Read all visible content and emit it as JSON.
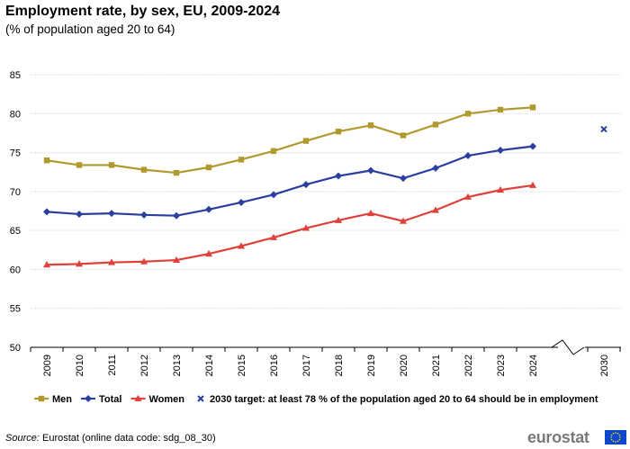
{
  "header": {
    "title": "Employment rate, by sex, EU, 2009-2024",
    "subtitle": "(% of population aged 20 to 64)"
  },
  "footer": {
    "source_label": "Source:",
    "source_text": "Eurostat (online data code: sdg_08_30)",
    "logo_text": "eurostat"
  },
  "colors": {
    "men": "#b09a2e",
    "total": "#2a3fa0",
    "women": "#e0403a",
    "target": "#2a3fa0",
    "grid": "#d0d0d0",
    "flag": "#0e47cb"
  },
  "chart_data": {
    "type": "line",
    "title": "Employment rate, by sex, EU, 2009-2024",
    "subtitle": "(% of population aged 20 to 64)",
    "xlabel": "",
    "ylabel": "",
    "ylim": [
      50,
      85
    ],
    "yticks": [
      50,
      55,
      60,
      65,
      70,
      75,
      80,
      85
    ],
    "grid": true,
    "legend": "bottom",
    "categories": [
      "2009",
      "2010",
      "2011",
      "2012",
      "2013",
      "2014",
      "2015",
      "2016",
      "2017",
      "2018",
      "2019",
      "2020",
      "2021",
      "2022",
      "2023",
      "2024"
    ],
    "series": [
      {
        "name": "Men",
        "marker": "square",
        "values": [
          74.0,
          73.4,
          73.4,
          72.8,
          72.4,
          73.1,
          74.1,
          75.2,
          76.5,
          77.7,
          78.5,
          77.2,
          78.6,
          80.0,
          80.5,
          80.8
        ]
      },
      {
        "name": "Total",
        "marker": "diamond",
        "values": [
          67.4,
          67.1,
          67.2,
          67.0,
          66.9,
          67.7,
          68.6,
          69.6,
          70.9,
          72.0,
          72.7,
          71.7,
          73.0,
          74.6,
          75.3,
          75.8
        ]
      },
      {
        "name": "Women",
        "marker": "triangle",
        "values": [
          60.6,
          60.7,
          60.9,
          61.0,
          61.2,
          62.0,
          63.0,
          64.1,
          65.3,
          66.3,
          67.2,
          66.2,
          67.6,
          69.3,
          70.2,
          70.8
        ]
      }
    ],
    "target": {
      "category": "2030",
      "value": 78,
      "marker": "cross",
      "label": "2030 target: at least 78 % of the population aged 20 to 64 should be in employment"
    }
  }
}
